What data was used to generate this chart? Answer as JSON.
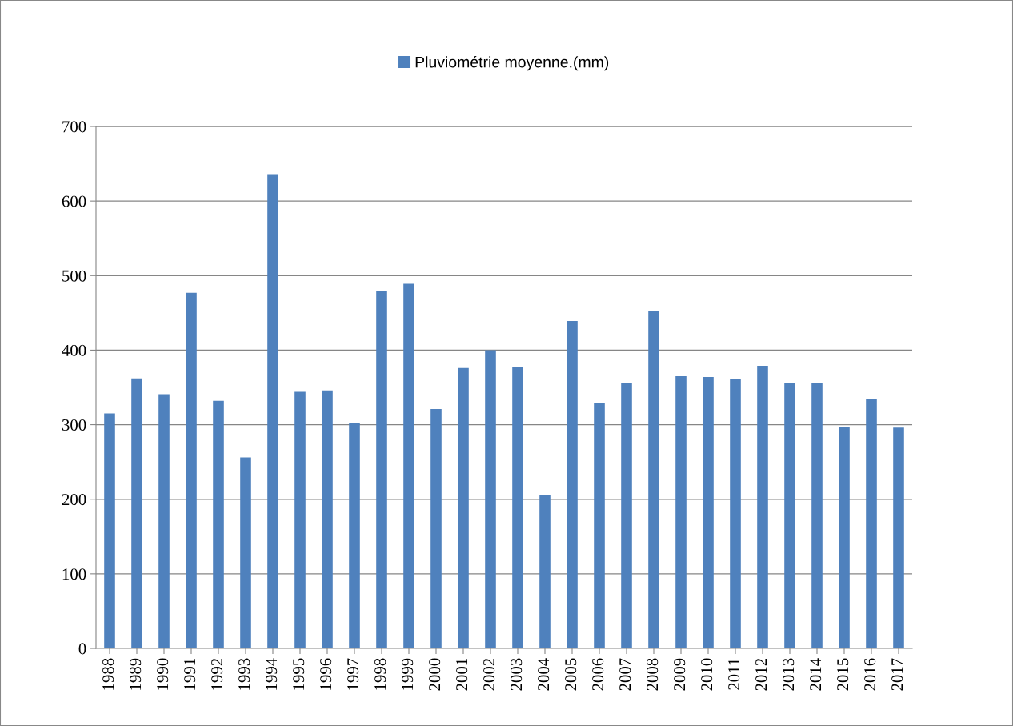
{
  "chart_data": {
    "type": "bar",
    "categories": [
      "1988",
      "1989",
      "1990",
      "1991",
      "1992",
      "1993",
      "1994",
      "1995",
      "1996",
      "1997",
      "1998",
      "1999",
      "2000",
      "2001",
      "2002",
      "2003",
      "2004",
      "2005",
      "2006",
      "2007",
      "2008",
      "2009",
      "2010",
      "2011",
      "2012",
      "2013",
      "2014",
      "2015",
      "2016",
      "2017"
    ],
    "series": [
      {
        "name": "Pluviométrie moyenne.(mm)",
        "color": "#4f81bd",
        "values": [
          315,
          362,
          341,
          477,
          332,
          256,
          635,
          344,
          346,
          302,
          480,
          489,
          321,
          376,
          400,
          378,
          205,
          439,
          329,
          356,
          453,
          365,
          364,
          361,
          379,
          356,
          356,
          297,
          334,
          296
        ]
      }
    ],
    "ylim": [
      0,
      700
    ],
    "yticks": [
      0,
      100,
      200,
      300,
      400,
      500,
      600,
      700
    ],
    "grid": "y",
    "legend": "top"
  }
}
